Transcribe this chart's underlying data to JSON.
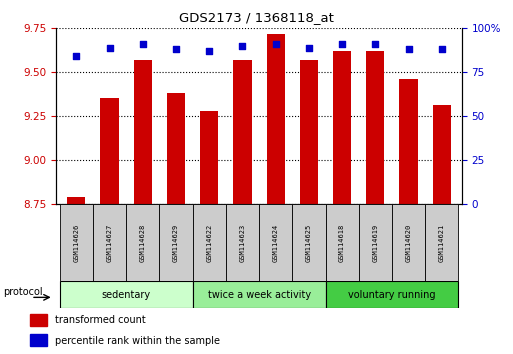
{
  "title": "GDS2173 / 1368118_at",
  "samples": [
    "GSM114626",
    "GSM114627",
    "GSM114628",
    "GSM114629",
    "GSM114622",
    "GSM114623",
    "GSM114624",
    "GSM114625",
    "GSM114618",
    "GSM114619",
    "GSM114620",
    "GSM114621"
  ],
  "transformed_count": [
    8.79,
    9.35,
    9.57,
    9.38,
    9.28,
    9.57,
    9.72,
    9.57,
    9.62,
    9.62,
    9.46,
    9.31
  ],
  "percentile_rank": [
    84,
    89,
    91,
    88,
    87,
    90,
    91,
    89,
    91,
    91,
    88,
    88
  ],
  "groups": [
    {
      "label": "sedentary",
      "indices": [
        0,
        1,
        2,
        3
      ],
      "color": "#ccffcc"
    },
    {
      "label": "twice a week activity",
      "indices": [
        4,
        5,
        6,
        7
      ],
      "color": "#99ee99"
    },
    {
      "label": "voluntary running",
      "indices": [
        8,
        9,
        10,
        11
      ],
      "color": "#44cc44"
    }
  ],
  "ylim_left": [
    8.75,
    9.75
  ],
  "ylim_right": [
    0,
    100
  ],
  "yticks_left": [
    8.75,
    9.0,
    9.25,
    9.5,
    9.75
  ],
  "yticks_right": [
    0,
    25,
    50,
    75,
    100
  ],
  "bar_color": "#cc0000",
  "dot_color": "#0000cc",
  "bar_width": 0.55,
  "background_color": "#ffffff",
  "grid_color": "#000000",
  "left_tick_color": "#cc0000",
  "right_tick_color": "#0000cc",
  "legend_items": [
    {
      "label": "transformed count",
      "color": "#cc0000"
    },
    {
      "label": "percentile rank within the sample",
      "color": "#0000cc"
    }
  ],
  "protocol_label": "protocol",
  "sample_box_color": "#cccccc",
  "figsize": [
    5.13,
    3.54
  ],
  "dpi": 100
}
